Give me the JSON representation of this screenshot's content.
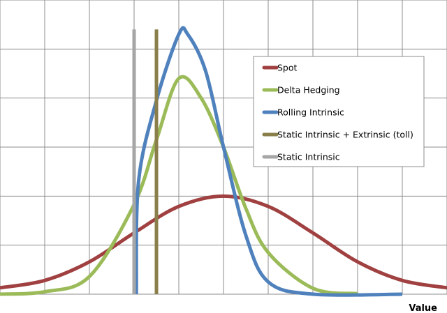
{
  "chart_data": {
    "type": "line",
    "title": "",
    "xlabel": "Value",
    "ylabel": "",
    "xlim": [
      0,
      10
    ],
    "ylim": [
      0,
      6
    ],
    "grid": true,
    "x_ticks_labeled": false,
    "y_ticks_labeled": false,
    "legend_position": "right",
    "series": [
      {
        "name": "Spot",
        "color": "#a04040",
        "x": [
          0,
          1,
          2,
          3,
          4,
          5,
          6,
          7,
          8,
          9,
          10
        ],
        "y": [
          0.13,
          0.28,
          0.66,
          1.25,
          1.79,
          2.0,
          1.79,
          1.25,
          0.66,
          0.28,
          0.13
        ]
      },
      {
        "name": "Delta Hedging",
        "color": "#9bbb59",
        "x": [
          0,
          1,
          2,
          3,
          3.5,
          4,
          4.5,
          5,
          5.5,
          6,
          7,
          8
        ],
        "y": [
          0.0,
          0.05,
          0.36,
          1.83,
          3.15,
          4.4,
          4.0,
          3.0,
          1.75,
          0.85,
          0.12,
          0.01
        ]
      },
      {
        "name": "Rolling Intrinsic",
        "color": "#4f81bd",
        "x": [
          3.05,
          3.1,
          3.5,
          4.0,
          4.2,
          4.6,
          5.0,
          5.5,
          6.0,
          7.0,
          9.0
        ],
        "y": [
          0.0,
          2.3,
          3.95,
          5.3,
          5.3,
          4.55,
          3.0,
          1.2,
          0.25,
          0.0,
          0.0
        ]
      },
      {
        "name": "Static Intrinsic + Extrinsic (toll)",
        "color": "#8a7f4a",
        "x": [
          3.5,
          3.5
        ],
        "y": [
          0.0,
          5.4
        ]
      },
      {
        "name": "Static Intrinsic",
        "color": "#a6a6a6",
        "x": [
          3.0,
          3.0
        ],
        "y": [
          0.0,
          5.4
        ]
      }
    ]
  }
}
